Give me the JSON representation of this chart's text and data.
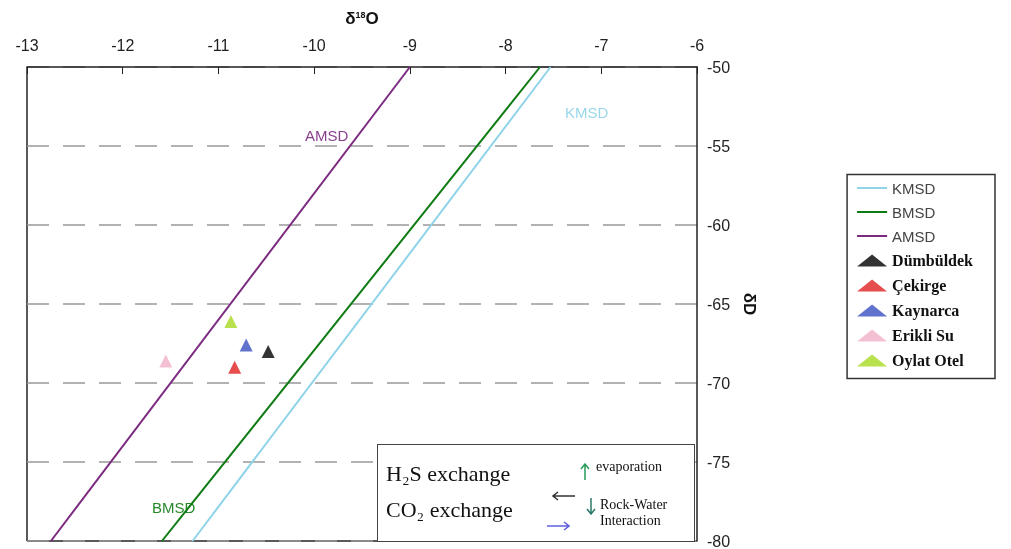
{
  "chart_data": {
    "type": "scatter",
    "xlabel": "δ$^{18}$O",
    "ylabel": "δD",
    "xlim": [
      -13,
      -6
    ],
    "xticks": [
      -13,
      -12,
      -11,
      -10,
      -9,
      -8,
      -7,
      -6
    ],
    "ylim": [
      -80,
      -50
    ],
    "yticks": [
      -80,
      -75,
      -70,
      -65,
      -60,
      -55,
      -50
    ],
    "grid": "y",
    "legend": "right",
    "series": [
      {
        "name": "KMSD",
        "type": "line",
        "marker": "none",
        "color": "#8fd3e8",
        "x": [
          -11.27,
          -7.53
        ],
        "values": [
          -80,
          -50
        ]
      },
      {
        "name": "BMSD",
        "type": "line",
        "marker": "none",
        "color": "#0e7a12",
        "x": [
          -11.59,
          -7.64
        ],
        "values": [
          -80,
          -50
        ]
      },
      {
        "name": "AMSD",
        "type": "line",
        "marker": "none",
        "color": "#7b2a80",
        "x": [
          -12.75,
          -9.0
        ],
        "values": [
          -80,
          -50
        ]
      },
      {
        "name": "Dümbüldek",
        "marker": "triangle",
        "color": "#000000",
        "x": [
          -10.48
        ],
        "values": [
          -68.0
        ]
      },
      {
        "name": "Çekirge",
        "marker": "triangle",
        "color": "#e02020",
        "x": [
          -10.83
        ],
        "values": [
          -69.0
        ]
      },
      {
        "name": "Kaynarca",
        "marker": "triangle",
        "color": "#3a4fc0",
        "x": [
          -10.71
        ],
        "values": [
          -67.6
        ]
      },
      {
        "name": "Erikli Su",
        "marker": "triangle",
        "color": "#f0b0c8",
        "x": [
          -11.55
        ],
        "values": [
          -68.6
        ]
      },
      {
        "name": "Oylat Otel",
        "marker": "triangle",
        "color": "#a8d820",
        "x": [
          -10.87
        ],
        "values": [
          -66.1
        ]
      }
    ],
    "annotations": [
      "AMSD",
      "KMSD",
      "BMSD",
      "H₂S exchange",
      "CO₂ exchange",
      "evaporation",
      "Rock-Water Interaction"
    ]
  }
}
